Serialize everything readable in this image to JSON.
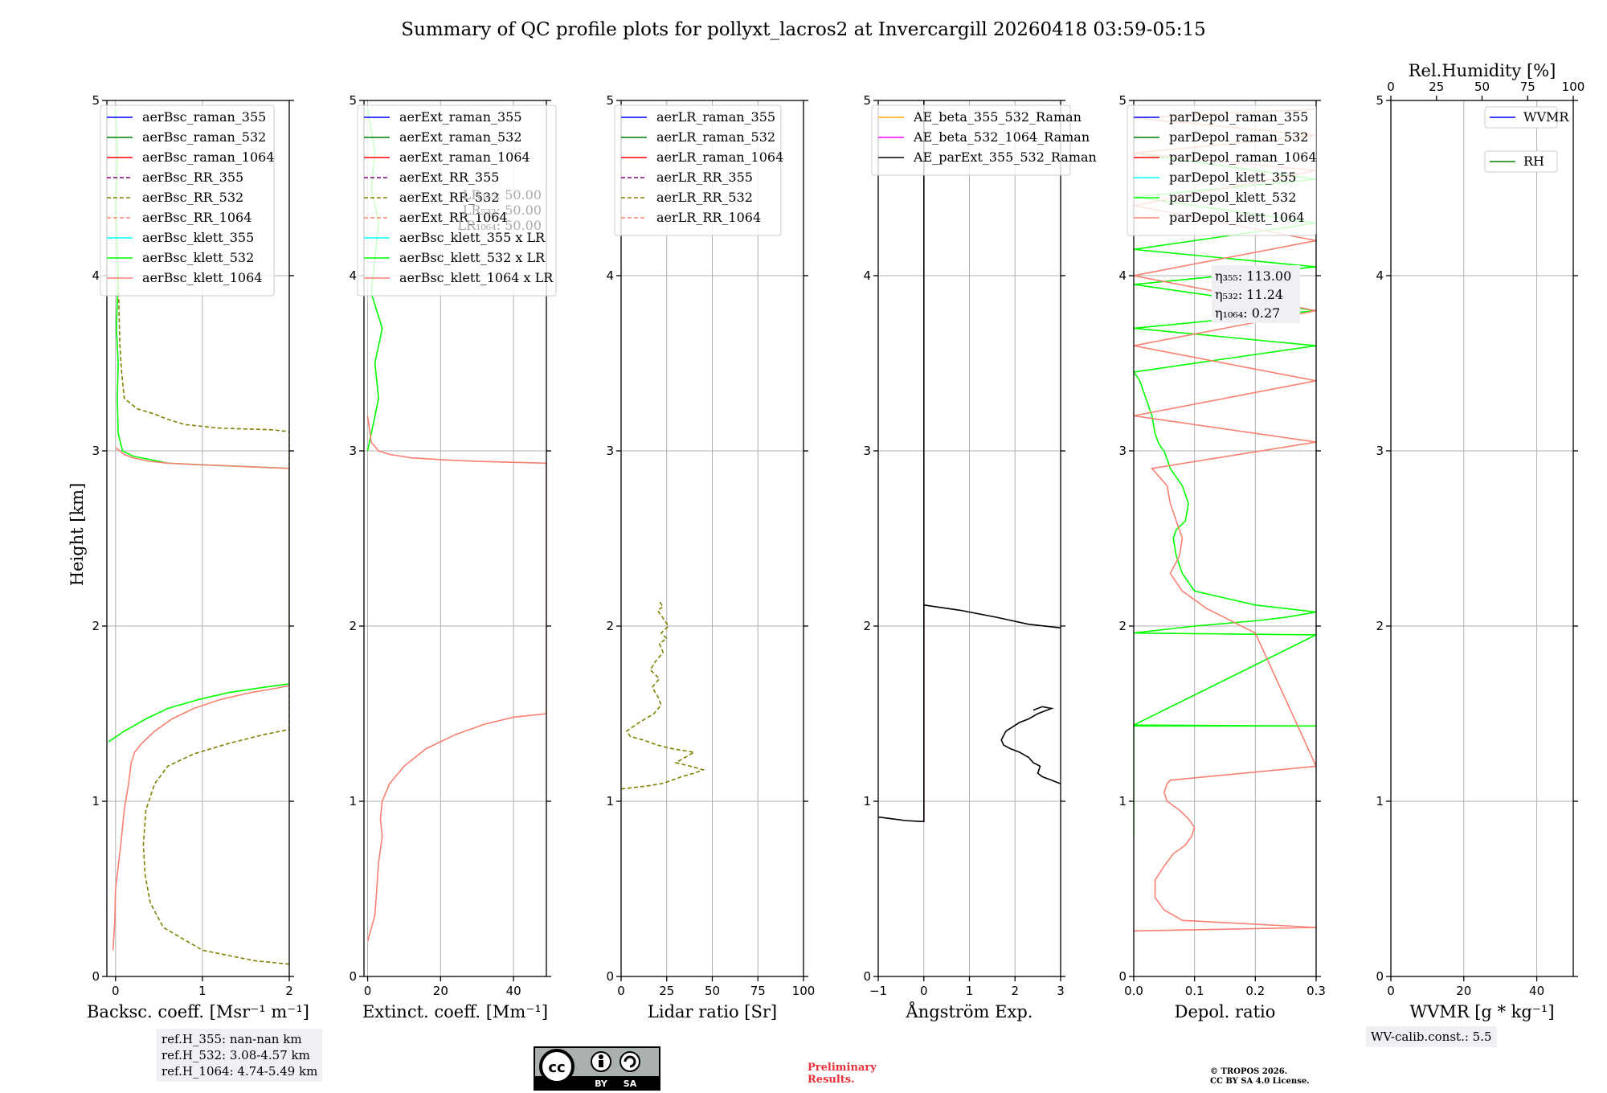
{
  "title": "Summary of QC profile plots for pollyxt_lacros2 at Invercargill 20260418 03:59-05:15",
  "ylabel": "Height [km]",
  "colors": {
    "blue": "#0000ff",
    "green": "#008000",
    "red": "#ff0000",
    "purple": "#800080",
    "olive": "#808000",
    "salmon": "#fa8072",
    "cyan": "#00ffff",
    "lime": "#00ff00",
    "orange": "#ffa500",
    "magenta": "#ff00ff",
    "black": "#000000"
  },
  "chart_data": [
    {
      "type": "line",
      "id": "bsc",
      "xlabel": "Backsc. coeff. [Msr⁻¹ m⁻¹]",
      "xlim": [
        -0.1,
        2
      ],
      "ylim": [
        0,
        5
      ],
      "xticks": [
        "0",
        "1",
        "2"
      ],
      "yticks": [
        "0",
        "1",
        "2",
        "3",
        "4",
        "5"
      ],
      "legend": "top-left",
      "series": [
        {
          "name": "aerBsc_raman_355",
          "color": "blue",
          "dash": false,
          "x": [],
          "y": []
        },
        {
          "name": "aerBsc_raman_532",
          "color": "green",
          "dash": false,
          "x": [],
          "y": []
        },
        {
          "name": "aerBsc_raman_1064",
          "color": "red",
          "dash": false,
          "x": [],
          "y": []
        },
        {
          "name": "aerBsc_RR_355",
          "color": "purple",
          "dash": true,
          "x": [],
          "y": []
        },
        {
          "name": "aerBsc_RR_532",
          "color": "olive",
          "dash": true,
          "x": [
            2.0,
            1.6,
            1.0,
            0.55,
            0.4,
            0.34,
            0.32,
            0.35,
            0.45,
            0.6,
            0.9,
            1.3,
            1.7,
            2.0,
            2.0,
            1.8,
            1.2,
            0.8,
            0.6,
            0.45,
            0.25,
            0.1,
            0.07,
            0.05,
            0.04,
            0.03,
            0.0,
            0.02,
            0.0
          ],
          "y": [
            0.07,
            0.09,
            0.15,
            0.28,
            0.42,
            0.58,
            0.75,
            0.95,
            1.1,
            1.2,
            1.27,
            1.33,
            1.38,
            1.41,
            3.11,
            3.12,
            3.13,
            3.15,
            3.18,
            3.21,
            3.24,
            3.3,
            3.45,
            3.6,
            3.8,
            4.0,
            4.3,
            4.6,
            4.95
          ]
        },
        {
          "name": "aerBsc_RR_1064",
          "color": "salmon",
          "dash": true,
          "x": [],
          "y": []
        },
        {
          "name": "aerBsc_klett_355",
          "color": "cyan",
          "dash": false,
          "x": [],
          "y": []
        },
        {
          "name": "aerBsc_klett_532",
          "color": "lime",
          "dash": false,
          "x": [
            -0.08,
            0.1,
            0.35,
            0.6,
            0.95,
            1.3,
            1.7,
            2.0,
            2.0,
            1.5,
            1.0,
            0.6,
            0.4,
            0.2,
            0.08,
            0.03,
            0.02,
            0.03,
            0.01,
            0.03,
            0.0,
            0.02,
            0.0
          ],
          "y": [
            1.34,
            1.4,
            1.47,
            1.53,
            1.58,
            1.62,
            1.65,
            1.67,
            2.9,
            2.91,
            2.92,
            2.93,
            2.95,
            2.97,
            3.0,
            3.1,
            3.3,
            3.5,
            3.7,
            4.0,
            4.4,
            4.7,
            4.95
          ]
        },
        {
          "name": "aerBsc_klett_1064",
          "color": "salmon",
          "dash": false,
          "x": [
            -0.03,
            -0.01,
            0.0,
            0.06,
            0.1,
            0.15,
            0.17,
            0.18,
            0.22,
            0.3,
            0.45,
            0.65,
            0.9,
            1.2,
            1.55,
            1.85,
            2.0,
            2.0,
            1.5,
            1.0,
            0.6,
            0.4,
            0.2,
            0.1,
            0.05,
            0.02,
            0.0
          ],
          "y": [
            0.15,
            0.3,
            0.5,
            0.75,
            0.95,
            1.1,
            1.18,
            1.22,
            1.28,
            1.33,
            1.4,
            1.47,
            1.53,
            1.58,
            1.62,
            1.645,
            1.66,
            2.9,
            2.91,
            2.92,
            2.93,
            2.94,
            2.96,
            2.98,
            3.0,
            3.01,
            3.02
          ]
        }
      ]
    },
    {
      "type": "line",
      "id": "ext",
      "xlabel": "Extinct. coeff. [Mm⁻¹]",
      "xlim": [
        -1,
        49
      ],
      "ylim": [
        0,
        5
      ],
      "xticks": [
        "0",
        "20",
        "40"
      ],
      "yticks": [
        "0",
        "1",
        "2",
        "3",
        "4",
        "5"
      ],
      "legend": "top-left",
      "annotation": [
        "LR₃₅₅: 50.00",
        "LR₅₃₂: 50.00",
        "LR₁₀₆₄: 50.00"
      ],
      "series": [
        {
          "name": "aerExt_raman_355",
          "color": "blue",
          "dash": false,
          "x": [],
          "y": []
        },
        {
          "name": "aerExt_raman_532",
          "color": "green",
          "dash": false,
          "x": [],
          "y": []
        },
        {
          "name": "aerExt_raman_1064",
          "color": "red",
          "dash": false,
          "x": [],
          "y": []
        },
        {
          "name": "aerExt_RR_355",
          "color": "purple",
          "dash": true,
          "x": [],
          "y": []
        },
        {
          "name": "aerExt_RR_532",
          "color": "olive",
          "dash": true,
          "x": [],
          "y": []
        },
        {
          "name": "aerExt_RR_1064",
          "color": "salmon",
          "dash": true,
          "x": [],
          "y": []
        },
        {
          "name": "aerBsc_klett_355 x LR",
          "color": "cyan",
          "dash": false,
          "x": [],
          "y": []
        },
        {
          "name": "aerBsc_klett_532 x LR",
          "color": "lime",
          "dash": false,
          "x": [
            0,
            1,
            3,
            2,
            4,
            1,
            2,
            3,
            1,
            2,
            0
          ],
          "y": [
            3.0,
            3.1,
            3.3,
            3.5,
            3.7,
            3.9,
            4.1,
            4.3,
            4.5,
            4.7,
            4.95
          ]
        },
        {
          "name": "aerBsc_klett_1064 x LR",
          "color": "salmon",
          "dash": false,
          "x": [
            0,
            2,
            2.5,
            3,
            4,
            3.5,
            4,
            6,
            10,
            16,
            24,
            32,
            40,
            49,
            49,
            30,
            20,
            12,
            6,
            3,
            1,
            0
          ],
          "y": [
            0.2,
            0.35,
            0.5,
            0.65,
            0.8,
            0.9,
            1.0,
            1.1,
            1.2,
            1.3,
            1.38,
            1.44,
            1.48,
            1.5,
            2.93,
            2.94,
            2.95,
            2.96,
            2.98,
            3.0,
            3.05,
            3.2
          ]
        }
      ]
    },
    {
      "type": "line",
      "id": "lr",
      "xlabel": "Lidar ratio [Sr]",
      "xlim": [
        0,
        100
      ],
      "ylim": [
        0,
        5
      ],
      "xticks": [
        "0",
        "25",
        "50",
        "75",
        "100"
      ],
      "yticks": [
        "0",
        "1",
        "2",
        "3",
        "4",
        "5"
      ],
      "legend": "top-left",
      "series": [
        {
          "name": "aerLR_raman_355",
          "color": "blue",
          "dash": false,
          "x": [],
          "y": []
        },
        {
          "name": "aerLR_raman_532",
          "color": "green",
          "dash": false,
          "x": [],
          "y": []
        },
        {
          "name": "aerLR_raman_1064",
          "color": "red",
          "dash": false,
          "x": [],
          "y": []
        },
        {
          "name": "aerLR_RR_355",
          "color": "purple",
          "dash": true,
          "x": [],
          "y": []
        },
        {
          "name": "aerLR_RR_532",
          "color": "olive",
          "dash": true,
          "x": [
            0,
            8,
            16,
            22,
            28,
            33,
            40,
            45,
            38,
            30,
            35,
            40,
            28,
            20,
            12,
            5,
            3,
            10,
            18,
            22,
            20,
            17,
            21,
            16,
            19,
            23,
            21,
            25,
            22,
            26,
            24,
            22,
            20,
            23,
            21
          ],
          "y": [
            1.07,
            1.08,
            1.09,
            1.1,
            1.12,
            1.14,
            1.16,
            1.18,
            1.2,
            1.22,
            1.25,
            1.28,
            1.3,
            1.32,
            1.35,
            1.37,
            1.4,
            1.45,
            1.5,
            1.55,
            1.6,
            1.65,
            1.7,
            1.75,
            1.8,
            1.85,
            1.9,
            1.93,
            1.96,
            2.0,
            2.03,
            2.06,
            2.09,
            2.11,
            2.14
          ]
        },
        {
          "name": "aerLR_RR_1064",
          "color": "salmon",
          "dash": true,
          "x": [],
          "y": []
        }
      ]
    },
    {
      "type": "line",
      "id": "ae",
      "xlabel": "Ångström Exp.",
      "xlim": [
        -1,
        3
      ],
      "ylim": [
        0,
        5
      ],
      "xticks": [
        "−1",
        "0",
        "1",
        "2",
        "3"
      ],
      "yticks": [
        "0",
        "1",
        "2",
        "3",
        "4",
        "5"
      ],
      "legend": "top-left",
      "series": [
        {
          "name": "AE_beta_355_532_Raman",
          "color": "orange",
          "dash": false,
          "x": [],
          "y": []
        },
        {
          "name": "AE_beta_532_1064_Raman",
          "color": "magenta",
          "dash": false,
          "x": [
            0,
            0
          ],
          "y": [
            0.88,
            2.12
          ]
        },
        {
          "name": "AE_parExt_355_532_Raman",
          "color": "black",
          "dash": false,
          "x": [
            -1,
            -0.7,
            -0.4,
            -0.1,
            0,
            0,
            0,
            0.8,
            1.6,
            2.3,
            3.0
          ],
          "y": [
            0.91,
            0.9,
            0.89,
            0.885,
            0.885,
            5,
            2.12,
            2.09,
            2.05,
            2.01,
            1.99
          ]
        },
        {
          "name": "AE_parExt_355_532_Raman",
          "color": "black",
          "dash": false,
          "legend": false,
          "x": [
            3.0,
            2.8,
            2.6,
            2.5,
            2.55,
            2.4,
            2.3,
            2.1,
            1.9,
            1.75,
            1.7,
            1.8,
            2.1,
            2.3,
            2.5,
            2.7,
            2.8,
            2.6,
            2.4
          ],
          "y": [
            1.1,
            1.12,
            1.14,
            1.16,
            1.2,
            1.22,
            1.25,
            1.28,
            1.3,
            1.32,
            1.35,
            1.4,
            1.45,
            1.47,
            1.5,
            1.52,
            1.53,
            1.54,
            1.52
          ]
        }
      ]
    },
    {
      "type": "line",
      "id": "depol",
      "xlabel": "Depol. ratio",
      "xlim": [
        0,
        0.3
      ],
      "ylim": [
        0,
        5
      ],
      "xticks": [
        "0.0",
        "0.1",
        "0.2",
        "0.3"
      ],
      "yticks": [
        "0",
        "1",
        "2",
        "3",
        "4",
        "5"
      ],
      "legend": "top-left",
      "annotation": [
        "η₃₅₅: 113.00",
        "η₅₃₂: 11.24",
        "η₁₀₆₄: 0.27"
      ],
      "series": [
        {
          "name": "parDepol_raman_355",
          "color": "blue",
          "dash": false,
          "x": [],
          "y": []
        },
        {
          "name": "parDepol_raman_532",
          "color": "green",
          "dash": false,
          "x": [],
          "y": []
        },
        {
          "name": "parDepol_raman_1064",
          "color": "red",
          "dash": false,
          "x": [],
          "y": []
        },
        {
          "name": "parDepol_klett_355",
          "color": "cyan",
          "dash": false,
          "x": [],
          "y": []
        },
        {
          "name": "parDepol_klett_532",
          "color": "lime",
          "dash": false,
          "x": [
            0.0,
            0.0,
            0.3,
            0.0,
            0.3,
            0.0,
            0.1,
            0.2,
            0.25,
            0.3,
            0.2,
            0.15,
            0.1,
            0.08,
            0.07,
            0.065,
            0.07,
            0.085,
            0.09,
            0.08,
            0.06,
            0.055,
            0.05,
            0.045,
            0.04,
            0.035,
            0.03,
            0.02,
            0.01,
            0.0,
            0.3,
            0.0,
            0.3,
            0.0,
            0.3,
            0.0,
            0.3,
            0.0,
            0.3,
            0.0,
            0.3,
            0.0,
            0.3
          ],
          "y": [
            0.8,
            1.43,
            1.43,
            1.435,
            1.95,
            1.96,
            2.0,
            2.03,
            2.05,
            2.08,
            2.12,
            2.16,
            2.2,
            2.3,
            2.4,
            2.5,
            2.55,
            2.6,
            2.7,
            2.8,
            2.9,
            2.95,
            3.0,
            3.02,
            3.05,
            3.1,
            3.2,
            3.3,
            3.4,
            3.45,
            3.6,
            3.7,
            3.8,
            3.95,
            4.05,
            4.15,
            4.3,
            4.45,
            4.55,
            4.7,
            4.8,
            4.9,
            4.95
          ]
        },
        {
          "name": "parDepol_klett_1064",
          "color": "salmon",
          "dash": false,
          "x": [
            0.0,
            0.3,
            0.08,
            0.05,
            0.035,
            0.035,
            0.05,
            0.065,
            0.085,
            0.095,
            0.1,
            0.09,
            0.075,
            0.055,
            0.05,
            0.055,
            0.06,
            0.3,
            0.2,
            0.12,
            0.08,
            0.06,
            0.075,
            0.08,
            0.07,
            0.06,
            0.055,
            0.03,
            0.3,
            0.0,
            0.3,
            0.0,
            0.3,
            0.0,
            0.3,
            0.0,
            0.3,
            0.0,
            0.3,
            0.0,
            0.3
          ],
          "y": [
            0.26,
            0.28,
            0.32,
            0.38,
            0.45,
            0.55,
            0.63,
            0.7,
            0.75,
            0.8,
            0.85,
            0.9,
            0.95,
            1.0,
            1.05,
            1.1,
            1.12,
            1.2,
            1.96,
            2.1,
            2.2,
            2.3,
            2.4,
            2.5,
            2.6,
            2.7,
            2.8,
            2.9,
            3.05,
            3.2,
            3.4,
            3.6,
            3.8,
            4.0,
            4.2,
            4.4,
            4.6,
            4.7,
            4.8,
            4.9,
            4.95
          ]
        }
      ]
    },
    {
      "type": "line",
      "id": "wv",
      "xlabel": "WVMR [g * kg⁻¹]",
      "x2label": "Rel.Humidity [%]",
      "xlim": [
        0,
        50
      ],
      "x2lim": [
        0,
        100
      ],
      "ylim": [
        0,
        5
      ],
      "xticks": [
        "0",
        "20",
        "40"
      ],
      "x2ticks": [
        "0",
        "25",
        "50",
        "75",
        "100"
      ],
      "yticks": [
        "0",
        "1",
        "2",
        "3",
        "4",
        "5"
      ],
      "legend": "top-right",
      "series": [
        {
          "name": "WVMR",
          "color": "blue",
          "dash": false,
          "x": [],
          "y": []
        },
        {
          "name": "RH",
          "color": "green",
          "dash": false,
          "x": [],
          "y": []
        }
      ]
    }
  ],
  "refh": [
    "ref.H_355: nan-nan km",
    "ref.H_532: 3.08-4.57 km",
    "ref.H_1064: 4.74-5.49 km"
  ],
  "wvcalib": "WV-calib.const.: 5.5",
  "license_badge": [
    "BY",
    "SA"
  ],
  "preliminary": [
    "Preliminary",
    "Results."
  ],
  "copyright": [
    "© TROPOS 2026.",
    "CC BY SA 4.0 License."
  ]
}
